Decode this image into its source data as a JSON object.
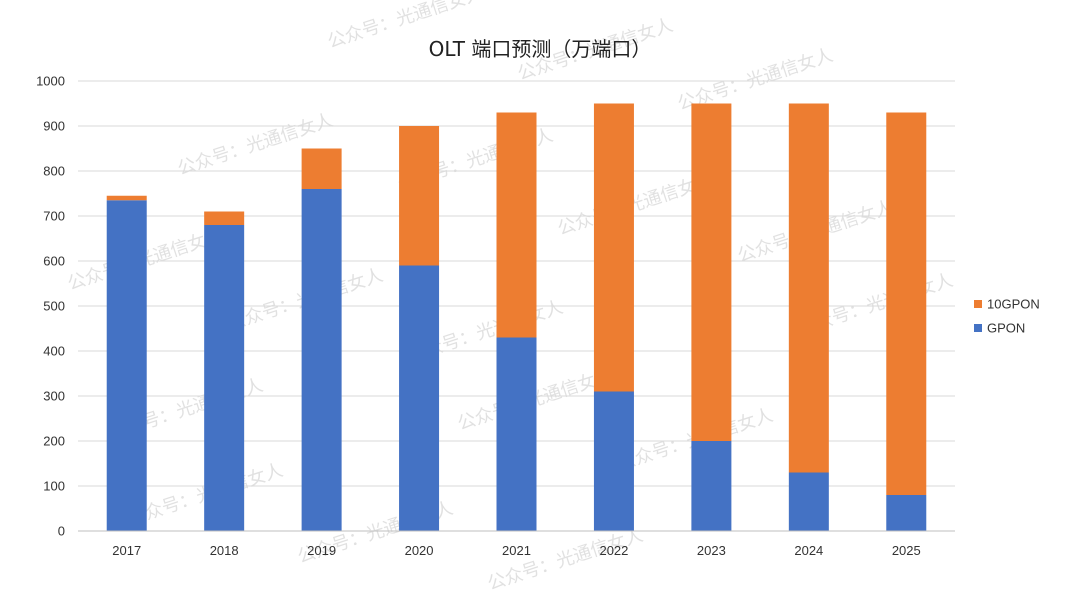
{
  "watermark_text": "公众号：光通信女人",
  "chart_data": {
    "type": "bar",
    "stacked": true,
    "title": "OLT 端口预测（万端口）",
    "xlabel": "",
    "ylabel": "",
    "categories": [
      "2017",
      "2018",
      "2019",
      "2020",
      "2021",
      "2022",
      "2023",
      "2024",
      "2025"
    ],
    "ylim": [
      0,
      1000
    ],
    "yticks": [
      0,
      100,
      200,
      300,
      400,
      500,
      600,
      700,
      800,
      900,
      1000
    ],
    "grid": true,
    "legend_position": "right",
    "series": [
      {
        "name": "GPON",
        "color": "#4472c4",
        "values": [
          735,
          680,
          760,
          590,
          430,
          310,
          200,
          130,
          80
        ]
      },
      {
        "name": "10GPON",
        "color": "#ed7d31",
        "values": [
          10,
          30,
          90,
          310,
          500,
          640,
          750,
          820,
          850
        ]
      }
    ]
  }
}
